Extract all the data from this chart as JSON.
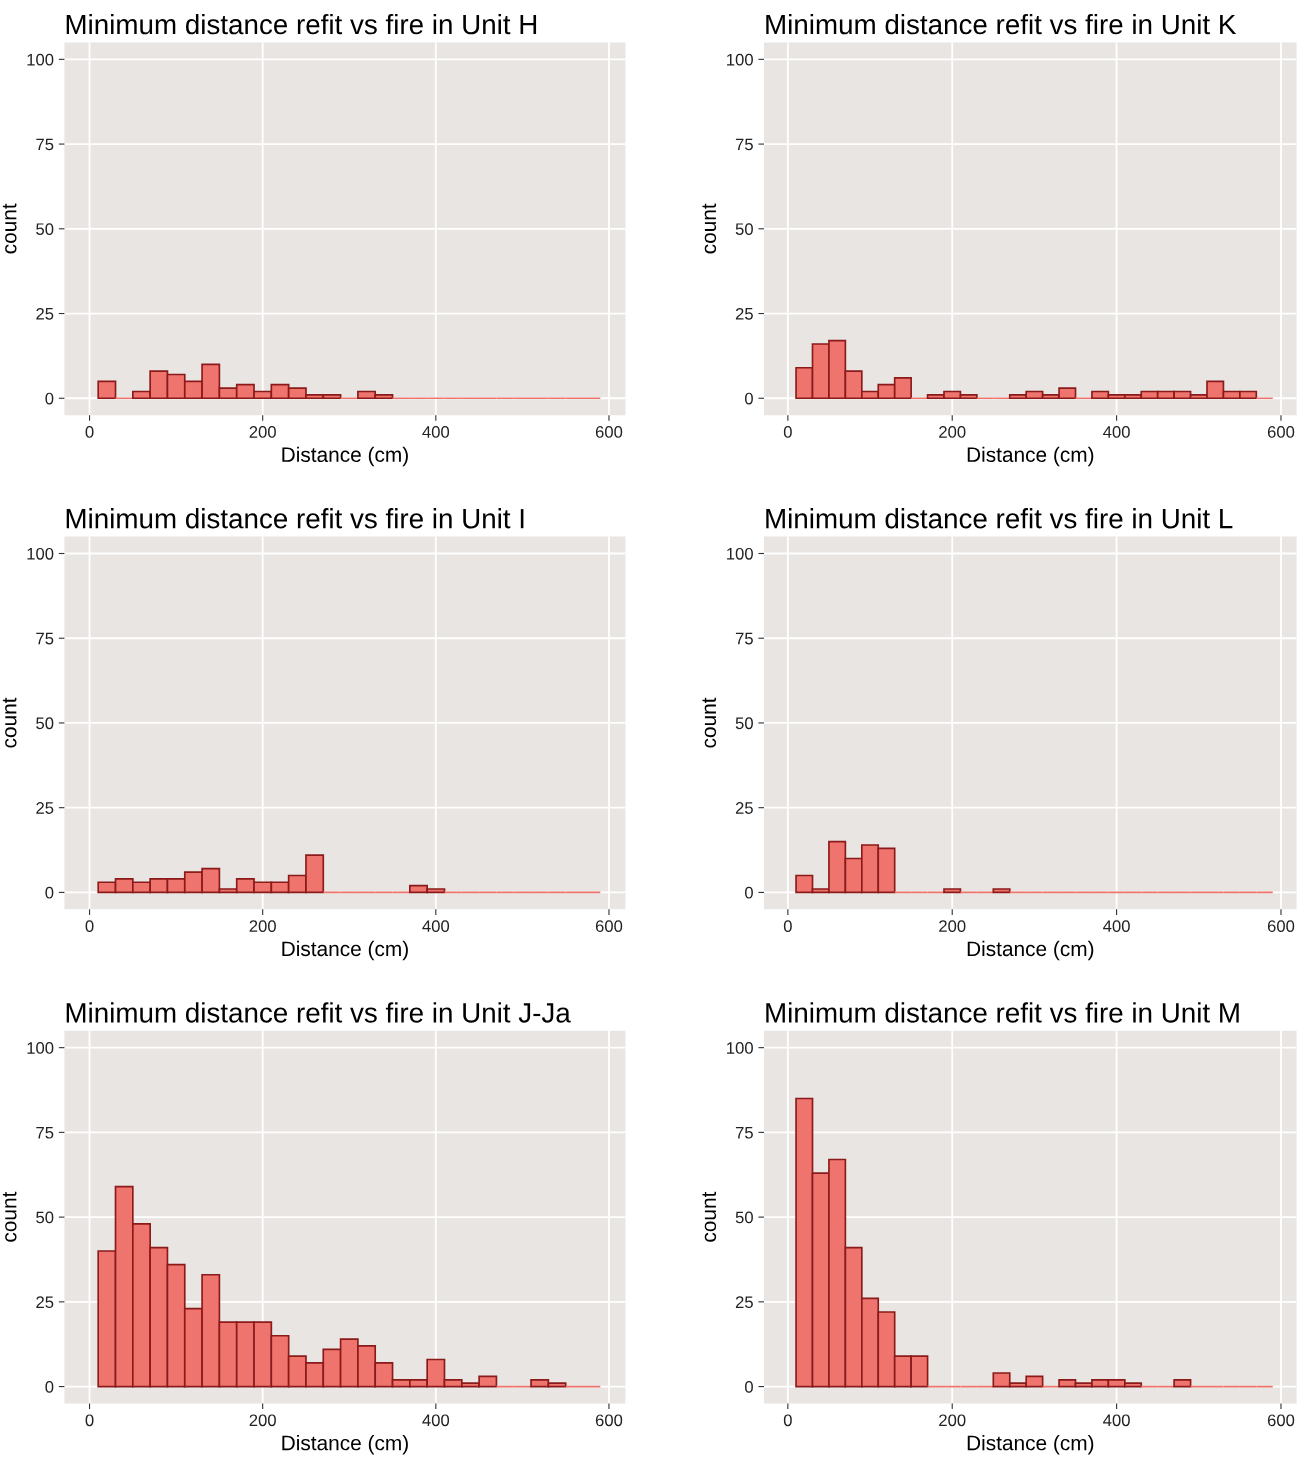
{
  "chart_data": [
    {
      "type": "histogram",
      "title": "Minimum distance refit vs fire in Unit H",
      "xlabel": "Distance (cm)",
      "ylabel": "count",
      "color": "#f0746e",
      "bins": [
        10,
        30,
        50,
        70,
        90,
        110,
        130,
        150,
        170,
        190,
        210,
        230,
        250,
        270,
        290,
        310,
        330,
        350,
        370,
        390,
        410,
        430,
        450,
        470,
        490,
        510,
        530,
        550,
        570,
        590
      ],
      "values": [
        5,
        0,
        2,
        8,
        7,
        5,
        10,
        3,
        4,
        2,
        4,
        3,
        1,
        1,
        0,
        2,
        1,
        0,
        0,
        0,
        0,
        0,
        0,
        0,
        0,
        0,
        0,
        0,
        0
      ],
      "xlim": [
        -29,
        619
      ],
      "xticks": [
        0,
        200,
        400,
        600
      ],
      "ylim": [
        -5,
        105
      ],
      "yticks": [
        0,
        25,
        50,
        75,
        100
      ],
      "grid": true
    },
    {
      "type": "histogram",
      "title": "Minimum distance refit vs fire in Unit K",
      "xlabel": "Distance (cm)",
      "ylabel": "count",
      "color": "#f0746e",
      "bins": [
        10,
        30,
        50,
        70,
        90,
        110,
        130,
        150,
        170,
        190,
        210,
        230,
        250,
        270,
        290,
        310,
        330,
        350,
        370,
        390,
        410,
        430,
        450,
        470,
        490,
        510,
        530,
        550,
        570,
        590
      ],
      "values": [
        9,
        16,
        17,
        8,
        2,
        4,
        6,
        0,
        1,
        2,
        1,
        0,
        0,
        1,
        2,
        1,
        3,
        0,
        2,
        1,
        1,
        2,
        2,
        2,
        1,
        5,
        2,
        2,
        0
      ],
      "xlim": [
        -29,
        619
      ],
      "xticks": [
        0,
        200,
        400,
        600
      ],
      "ylim": [
        -5,
        105
      ],
      "yticks": [
        0,
        25,
        50,
        75,
        100
      ],
      "grid": true
    },
    {
      "type": "histogram",
      "title": "Minimum distance refit vs fire in Unit I",
      "xlabel": "Distance (cm)",
      "ylabel": "count",
      "color": "#f0746e",
      "bins": [
        10,
        30,
        50,
        70,
        90,
        110,
        130,
        150,
        170,
        190,
        210,
        230,
        250,
        270,
        290,
        310,
        330,
        350,
        370,
        390,
        410,
        430,
        450,
        470,
        490,
        510,
        530,
        550,
        570,
        590
      ],
      "values": [
        3,
        4,
        3,
        4,
        4,
        6,
        7,
        1,
        4,
        3,
        3,
        5,
        11,
        0,
        0,
        0,
        0,
        0,
        2,
        1,
        0,
        0,
        0,
        0,
        0,
        0,
        0,
        0,
        0
      ],
      "xlim": [
        -29,
        619
      ],
      "xticks": [
        0,
        200,
        400,
        600
      ],
      "ylim": [
        -5,
        105
      ],
      "yticks": [
        0,
        25,
        50,
        75,
        100
      ],
      "grid": true
    },
    {
      "type": "histogram",
      "title": "Minimum distance refit vs fire in Unit L",
      "xlabel": "Distance (cm)",
      "ylabel": "count",
      "color": "#f0746e",
      "bins": [
        10,
        30,
        50,
        70,
        90,
        110,
        130,
        150,
        170,
        190,
        210,
        230,
        250,
        270,
        290,
        310,
        330,
        350,
        370,
        390,
        410,
        430,
        450,
        470,
        490,
        510,
        530,
        550,
        570,
        590
      ],
      "values": [
        5,
        1,
        15,
        10,
        14,
        13,
        0,
        0,
        0,
        1,
        0,
        0,
        1,
        0,
        0,
        0,
        0,
        0,
        0,
        0,
        0,
        0,
        0,
        0,
        0,
        0,
        0,
        0,
        0
      ],
      "xlim": [
        -29,
        619
      ],
      "xticks": [
        0,
        200,
        400,
        600
      ],
      "ylim": [
        -5,
        105
      ],
      "yticks": [
        0,
        25,
        50,
        75,
        100
      ],
      "grid": true
    },
    {
      "type": "histogram",
      "title": "Minimum distance refit vs fire in Unit J-Ja",
      "xlabel": "Distance (cm)",
      "ylabel": "count",
      "color": "#f0746e",
      "bins": [
        10,
        30,
        50,
        70,
        90,
        110,
        130,
        150,
        170,
        190,
        210,
        230,
        250,
        270,
        290,
        310,
        330,
        350,
        370,
        390,
        410,
        430,
        450,
        470,
        490,
        510,
        530,
        550,
        570,
        590
      ],
      "values": [
        40,
        59,
        48,
        41,
        36,
        23,
        33,
        19,
        19,
        19,
        15,
        9,
        7,
        11,
        14,
        12,
        7,
        2,
        2,
        8,
        2,
        1,
        3,
        0,
        0,
        2,
        1,
        0,
        0
      ],
      "xlim": [
        -29,
        619
      ],
      "xticks": [
        0,
        200,
        400,
        600
      ],
      "ylim": [
        -5,
        105
      ],
      "yticks": [
        0,
        25,
        50,
        75,
        100
      ],
      "grid": true
    },
    {
      "type": "histogram",
      "title": "Minimum distance refit vs fire in Unit M",
      "xlabel": "Distance (cm)",
      "ylabel": "count",
      "color": "#f0746e",
      "bins": [
        10,
        30,
        50,
        70,
        90,
        110,
        130,
        150,
        170,
        190,
        210,
        230,
        250,
        270,
        290,
        310,
        330,
        350,
        370,
        390,
        410,
        430,
        450,
        470,
        490,
        510,
        530,
        550,
        570,
        590
      ],
      "values": [
        85,
        63,
        67,
        41,
        26,
        22,
        9,
        9,
        0,
        0,
        0,
        0,
        4,
        1,
        3,
        0,
        2,
        1,
        2,
        2,
        1,
        0,
        0,
        2,
        0,
        0,
        0,
        0,
        0
      ],
      "xlim": [
        -29,
        619
      ],
      "xticks": [
        0,
        200,
        400,
        600
      ],
      "ylim": [
        -5,
        105
      ],
      "yticks": [
        0,
        25,
        50,
        75,
        100
      ],
      "grid": true
    }
  ]
}
